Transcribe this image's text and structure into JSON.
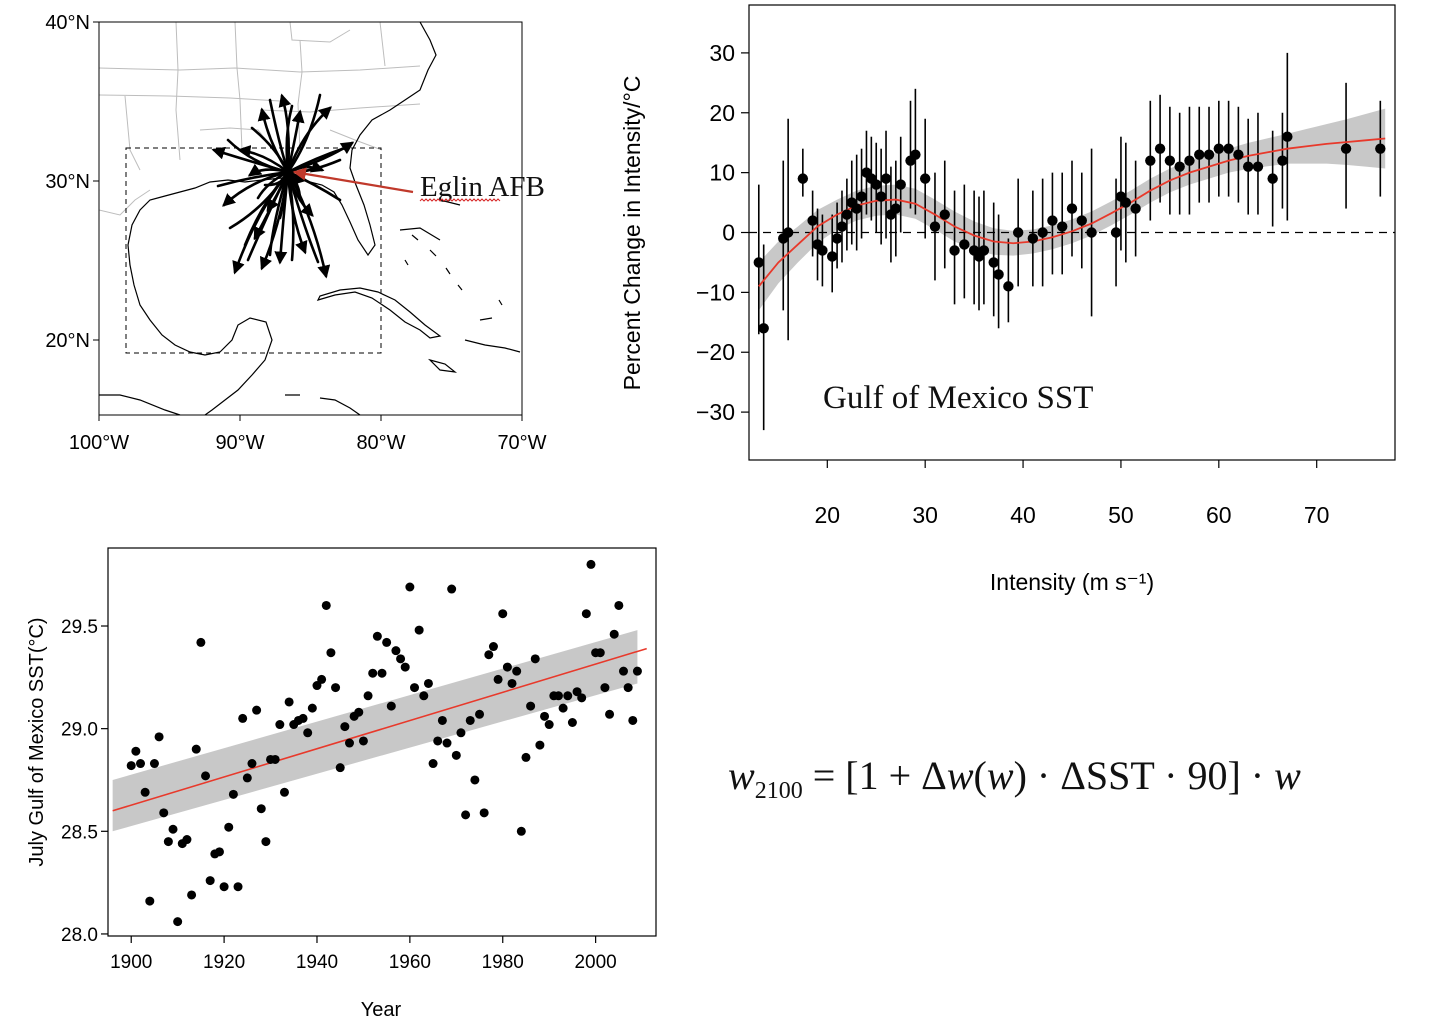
{
  "map": {
    "lat_labels": [
      "40°N",
      "30°N",
      "20°N"
    ],
    "lon_labels": [
      "100°W",
      "90°W",
      "80°W",
      "70°W"
    ],
    "annotation": "Eglin AFB",
    "track_color": "#000000",
    "arrow_color": "#c0392b"
  },
  "intensity_chart": {
    "chart_data": {
      "type": "scatter",
      "title": "",
      "xlabel": "Intensity (m s⁻¹)",
      "ylabel": "Percent Change in Intensity/°C",
      "annotation": "Gulf of Mexico SST",
      "xlim": [
        12,
        78
      ],
      "ylim": [
        -38,
        38
      ],
      "x_ticks": [
        20,
        30,
        40,
        50,
        60,
        70
      ],
      "y_ticks": [
        30,
        20,
        10,
        0,
        -10,
        -20,
        -30
      ],
      "fit_color": "#e8392b",
      "band_color": "#c8c8c8",
      "points": [
        {
          "x": 13,
          "y": -5,
          "lo": -17,
          "hi": 8
        },
        {
          "x": 13.5,
          "y": -16,
          "lo": -33,
          "hi": -2
        },
        {
          "x": 15.5,
          "y": -1,
          "lo": -13,
          "hi": 12
        },
        {
          "x": 16,
          "y": 0,
          "lo": -18,
          "hi": 19
        },
        {
          "x": 17.5,
          "y": 9,
          "lo": 6,
          "hi": 14
        },
        {
          "x": 18.5,
          "y": 2,
          "lo": -4,
          "hi": 7
        },
        {
          "x": 19,
          "y": -2,
          "lo": -8,
          "hi": 4
        },
        {
          "x": 19.5,
          "y": -3,
          "lo": -9,
          "hi": 3
        },
        {
          "x": 20.5,
          "y": -4,
          "lo": -10,
          "hi": 3
        },
        {
          "x": 21,
          "y": -1,
          "lo": -6,
          "hi": 5
        },
        {
          "x": 21.5,
          "y": 1,
          "lo": -5,
          "hi": 7
        },
        {
          "x": 22,
          "y": 3,
          "lo": -3,
          "hi": 9
        },
        {
          "x": 22.5,
          "y": 5,
          "lo": -2,
          "hi": 12
        },
        {
          "x": 23,
          "y": 4,
          "lo": -3,
          "hi": 13
        },
        {
          "x": 23.5,
          "y": 6,
          "lo": -1,
          "hi": 14
        },
        {
          "x": 24,
          "y": 10,
          "lo": 3,
          "hi": 17
        },
        {
          "x": 24.5,
          "y": 9,
          "lo": 2,
          "hi": 16
        },
        {
          "x": 25,
          "y": 8,
          "lo": 0,
          "hi": 15
        },
        {
          "x": 25.5,
          "y": 6,
          "lo": -2,
          "hi": 14
        },
        {
          "x": 26,
          "y": 9,
          "lo": -1,
          "hi": 17
        },
        {
          "x": 26.5,
          "y": 3,
          "lo": -5,
          "hi": 11
        },
        {
          "x": 27,
          "y": 4,
          "lo": -4,
          "hi": 12
        },
        {
          "x": 27.5,
          "y": 8,
          "lo": 0,
          "hi": 16
        },
        {
          "x": 28.5,
          "y": 12,
          "lo": 4,
          "hi": 22
        },
        {
          "x": 29,
          "y": 13,
          "lo": 3,
          "hi": 24
        },
        {
          "x": 30,
          "y": 9,
          "lo": -1,
          "hi": 19
        },
        {
          "x": 31,
          "y": 1,
          "lo": -8,
          "hi": 10
        },
        {
          "x": 32,
          "y": 3,
          "lo": -6,
          "hi": 12
        },
        {
          "x": 33,
          "y": -3,
          "lo": -12,
          "hi": 7
        },
        {
          "x": 34,
          "y": -2,
          "lo": -11,
          "hi": 8
        },
        {
          "x": 35,
          "y": -3,
          "lo": -12,
          "hi": 7
        },
        {
          "x": 35.5,
          "y": -4,
          "lo": -13,
          "hi": 6
        },
        {
          "x": 36,
          "y": -3,
          "lo": -12,
          "hi": 7
        },
        {
          "x": 37,
          "y": -5,
          "lo": -14,
          "hi": 5
        },
        {
          "x": 37.5,
          "y": -7,
          "lo": -16,
          "hi": 3
        },
        {
          "x": 38.5,
          "y": -9,
          "lo": -15,
          "hi": -1
        },
        {
          "x": 39.5,
          "y": 0,
          "lo": -9,
          "hi": 9
        },
        {
          "x": 41,
          "y": -1,
          "lo": -9,
          "hi": 7
        },
        {
          "x": 42,
          "y": 0,
          "lo": -9,
          "hi": 9
        },
        {
          "x": 43,
          "y": 2,
          "lo": -7,
          "hi": 10
        },
        {
          "x": 44,
          "y": 1,
          "lo": -7,
          "hi": 10
        },
        {
          "x": 45,
          "y": 4,
          "lo": -4,
          "hi": 12
        },
        {
          "x": 46,
          "y": 2,
          "lo": -6,
          "hi": 10
        },
        {
          "x": 47,
          "y": 0,
          "lo": -14,
          "hi": 14
        },
        {
          "x": 49.5,
          "y": 0,
          "lo": -9,
          "hi": 9
        },
        {
          "x": 50,
          "y": 6,
          "lo": -3,
          "hi": 16
        },
        {
          "x": 50.5,
          "y": 5,
          "lo": -5,
          "hi": 15
        },
        {
          "x": 51.5,
          "y": 4,
          "lo": -4,
          "hi": 12
        },
        {
          "x": 53,
          "y": 12,
          "lo": 2,
          "hi": 22
        },
        {
          "x": 54,
          "y": 14,
          "lo": 5,
          "hi": 23
        },
        {
          "x": 55,
          "y": 12,
          "lo": 3,
          "hi": 21
        },
        {
          "x": 56,
          "y": 11,
          "lo": 3,
          "hi": 20
        },
        {
          "x": 57,
          "y": 12,
          "lo": 3,
          "hi": 21
        },
        {
          "x": 58,
          "y": 13,
          "lo": 5,
          "hi": 21
        },
        {
          "x": 59,
          "y": 13,
          "lo": 5,
          "hi": 21
        },
        {
          "x": 60,
          "y": 14,
          "lo": 6,
          "hi": 22
        },
        {
          "x": 61,
          "y": 14,
          "lo": 6,
          "hi": 22
        },
        {
          "x": 62,
          "y": 13,
          "lo": 5,
          "hi": 21
        },
        {
          "x": 63,
          "y": 11,
          "lo": 3,
          "hi": 19
        },
        {
          "x": 64,
          "y": 11,
          "lo": 3,
          "hi": 20
        },
        {
          "x": 65.5,
          "y": 9,
          "lo": 1,
          "hi": 17
        },
        {
          "x": 66.5,
          "y": 12,
          "lo": 4,
          "hi": 20
        },
        {
          "x": 67,
          "y": 16,
          "lo": 2,
          "hi": 30
        },
        {
          "x": 73,
          "y": 14,
          "lo": 4,
          "hi": 25
        },
        {
          "x": 76.5,
          "y": 14,
          "lo": 6,
          "hi": 22
        }
      ],
      "fit": [
        [
          13,
          -9
        ],
        [
          15,
          -5
        ],
        [
          17,
          -2
        ],
        [
          19,
          1
        ],
        [
          21,
          3
        ],
        [
          23,
          4.5
        ],
        [
          25,
          5.3
        ],
        [
          27,
          5.5
        ],
        [
          29,
          4.8
        ],
        [
          31,
          3
        ],
        [
          33,
          1
        ],
        [
          35,
          -0.5
        ],
        [
          37,
          -1.5
        ],
        [
          39,
          -1.8
        ],
        [
          41,
          -1.5
        ],
        [
          43,
          -0.8
        ],
        [
          45,
          0.2
        ],
        [
          47,
          1.5
        ],
        [
          49,
          3.2
        ],
        [
          51,
          5
        ],
        [
          53,
          7
        ],
        [
          55,
          8.7
        ],
        [
          57,
          10
        ],
        [
          59,
          11
        ],
        [
          61,
          12
        ],
        [
          63,
          12.8
        ],
        [
          65,
          13.4
        ],
        [
          67,
          14
        ],
        [
          69,
          14.4
        ],
        [
          71,
          14.8
        ],
        [
          73,
          15.1
        ],
        [
          75,
          15.4
        ],
        [
          77,
          15.7
        ]
      ],
      "band_half_width": [
        [
          13,
          4
        ],
        [
          17,
          3
        ],
        [
          21,
          2.5
        ],
        [
          27,
          2.5
        ],
        [
          33,
          2.5
        ],
        [
          40,
          2
        ],
        [
          47,
          2
        ],
        [
          54,
          2
        ],
        [
          61,
          2
        ],
        [
          67,
          2.5
        ],
        [
          72,
          3.5
        ],
        [
          77,
          5
        ]
      ]
    }
  },
  "sst_chart": {
    "chart_data": {
      "type": "scatter",
      "title": "",
      "xlabel": "Year",
      "ylabel": "July Gulf of Mexico SST(°C)",
      "xlim": [
        1895,
        2013
      ],
      "ylim": [
        27.99,
        29.88
      ],
      "x_ticks": [
        1900,
        1920,
        1940,
        1960,
        1980,
        2000
      ],
      "y_ticks": [
        "28.0",
        "28.5",
        "29.0",
        "29.5"
      ],
      "fit_color": "#e8392b",
      "band_color": "#c8c8c8",
      "fit": {
        "x0": 1896,
        "y0": 28.6,
        "x1": 2011,
        "y1": 29.39
      },
      "band": {
        "x0": 1896,
        "lo0": 28.5,
        "hi0": 28.75,
        "x1": 2009,
        "lo1": 29.22,
        "hi1": 29.48
      },
      "points": [
        [
          1900,
          28.82
        ],
        [
          1901,
          28.89
        ],
        [
          1902,
          28.83
        ],
        [
          1903,
          28.69
        ],
        [
          1904,
          28.16
        ],
        [
          1905,
          28.83
        ],
        [
          1906,
          28.96
        ],
        [
          1907,
          28.59
        ],
        [
          1908,
          28.45
        ],
        [
          1909,
          28.51
        ],
        [
          1910,
          28.06
        ],
        [
          1911,
          28.44
        ],
        [
          1912,
          28.46
        ],
        [
          1913,
          28.19
        ],
        [
          1914,
          28.9
        ],
        [
          1915,
          29.42
        ],
        [
          1916,
          28.77
        ],
        [
          1917,
          28.26
        ],
        [
          1918,
          28.39
        ],
        [
          1919,
          28.4
        ],
        [
          1920,
          28.23
        ],
        [
          1921,
          28.52
        ],
        [
          1922,
          28.68
        ],
        [
          1923,
          28.23
        ],
        [
          1924,
          29.05
        ],
        [
          1925,
          28.76
        ],
        [
          1926,
          28.83
        ],
        [
          1927,
          29.09
        ],
        [
          1928,
          28.61
        ],
        [
          1929,
          28.45
        ],
        [
          1930,
          28.85
        ],
        [
          1931,
          28.85
        ],
        [
          1932,
          29.02
        ],
        [
          1933,
          28.69
        ],
        [
          1934,
          29.13
        ],
        [
          1935,
          29.02
        ],
        [
          1936,
          29.04
        ],
        [
          1937,
          29.05
        ],
        [
          1938,
          28.98
        ],
        [
          1939,
          29.1
        ],
        [
          1940,
          29.21
        ],
        [
          1941,
          29.24
        ],
        [
          1942,
          29.6
        ],
        [
          1943,
          29.37
        ],
        [
          1944,
          29.2
        ],
        [
          1945,
          28.81
        ],
        [
          1946,
          29.01
        ],
        [
          1947,
          28.93
        ],
        [
          1948,
          29.06
        ],
        [
          1949,
          29.08
        ],
        [
          1950,
          28.94
        ],
        [
          1951,
          29.16
        ],
        [
          1952,
          29.27
        ],
        [
          1953,
          29.45
        ],
        [
          1954,
          29.27
        ],
        [
          1955,
          29.42
        ],
        [
          1956,
          29.11
        ],
        [
          1957,
          29.38
        ],
        [
          1958,
          29.34
        ],
        [
          1959,
          29.3
        ],
        [
          1960,
          29.69
        ],
        [
          1961,
          29.2
        ],
        [
          1962,
          29.48
        ],
        [
          1963,
          29.16
        ],
        [
          1964,
          29.22
        ],
        [
          1965,
          28.83
        ],
        [
          1966,
          28.94
        ],
        [
          1967,
          29.04
        ],
        [
          1968,
          28.93
        ],
        [
          1969,
          29.68
        ],
        [
          1970,
          28.87
        ],
        [
          1971,
          28.98
        ],
        [
          1972,
          28.58
        ],
        [
          1973,
          29.04
        ],
        [
          1974,
          28.75
        ],
        [
          1975,
          29.07
        ],
        [
          1976,
          28.59
        ],
        [
          1977,
          29.36
        ],
        [
          1978,
          29.4
        ],
        [
          1979,
          29.24
        ],
        [
          1980,
          29.56
        ],
        [
          1981,
          29.3
        ],
        [
          1982,
          29.22
        ],
        [
          1983,
          29.28
        ],
        [
          1984,
          28.5
        ],
        [
          1985,
          28.86
        ],
        [
          1986,
          29.11
        ],
        [
          1987,
          29.34
        ],
        [
          1988,
          28.92
        ],
        [
          1989,
          29.06
        ],
        [
          1990,
          29.02
        ],
        [
          1991,
          29.16
        ],
        [
          1992,
          29.16
        ],
        [
          1993,
          29.1
        ],
        [
          1994,
          29.16
        ],
        [
          1995,
          29.03
        ],
        [
          1996,
          29.18
        ],
        [
          1997,
          29.15
        ],
        [
          1998,
          29.56
        ],
        [
          1999,
          29.8
        ],
        [
          2000,
          29.37
        ],
        [
          2001,
          29.37
        ],
        [
          2002,
          29.2
        ],
        [
          2003,
          29.07
        ],
        [
          2004,
          29.46
        ],
        [
          2005,
          29.6
        ],
        [
          2006,
          29.28
        ],
        [
          2007,
          29.2
        ],
        [
          2008,
          29.04
        ],
        [
          2009,
          29.28
        ]
      ]
    }
  },
  "formula": {
    "w": "w",
    "sub": "2100",
    "rest_a": " = [1 + Δ",
    "w_arg": "w",
    "paren": "(",
    "w_arg2": "w",
    "rest_b": ") · ΔSST · 90] · ",
    "w_end": "w"
  }
}
